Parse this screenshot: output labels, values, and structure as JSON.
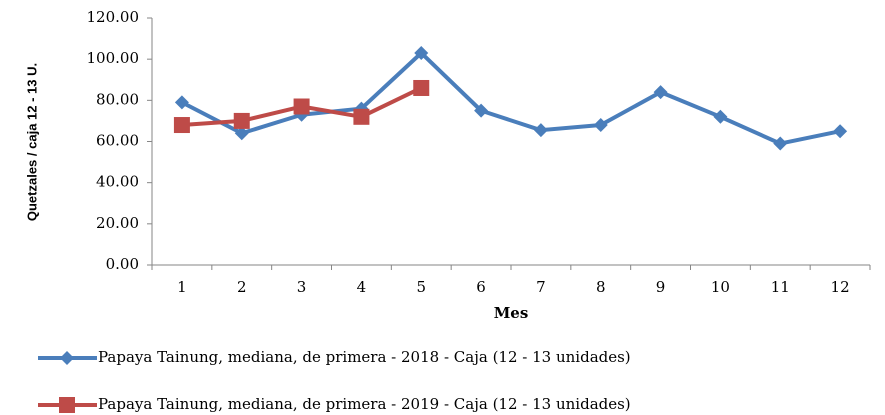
{
  "chart_data": {
    "type": "line",
    "x_label": "Mes",
    "y_label": "Quetzales / caja 12 - 13 U.",
    "categories": [
      "1",
      "2",
      "3",
      "4",
      "5",
      "6",
      "7",
      "8",
      "9",
      "10",
      "11",
      "12"
    ],
    "series": [
      {
        "name": "Papaya Tainung, mediana, de primera - 2018 - Caja (12 - 13 unidades)",
        "color": "#4a7ebb",
        "marker": "diamond",
        "values": [
          79,
          64,
          73,
          76,
          103,
          75,
          65.5,
          68,
          84,
          72,
          59,
          65
        ]
      },
      {
        "name": "Papaya Tainung, mediana, de primera - 2019 - Caja (12 - 13 unidades)",
        "color": "#be4b48",
        "marker": "square",
        "values": [
          68,
          70,
          77,
          72,
          86,
          null,
          null,
          null,
          null,
          null,
          null,
          null
        ]
      }
    ],
    "ylim": [
      0,
      120
    ],
    "yticks": [
      {
        "value": 0,
        "label": "0.00"
      },
      {
        "value": 20,
        "label": "20.00"
      },
      {
        "value": 40,
        "label": "40.00"
      },
      {
        "value": 60,
        "label": "60.00"
      },
      {
        "value": 80,
        "label": "80.00"
      },
      {
        "value": 100,
        "label": "100.00"
      },
      {
        "value": 120,
        "label": "120.00"
      }
    ],
    "grid": false
  }
}
